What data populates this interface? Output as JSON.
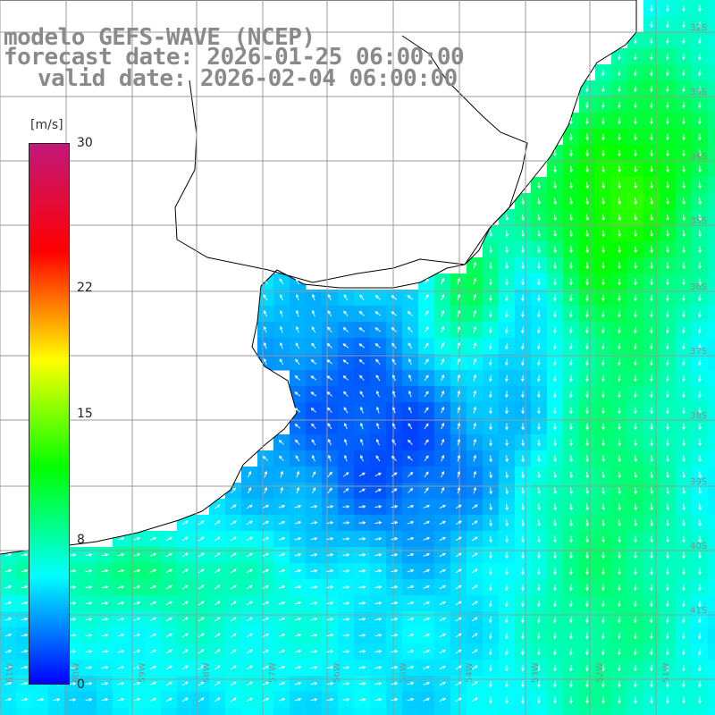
{
  "title": {
    "line1": "modelo GEFS-WAVE (NCEP)",
    "line2": "forecast date: 2026-01-25 06:00:00",
    "line3": "valid date: 2026-02-04 06:00:00"
  },
  "colorbar": {
    "unit": "[m/s]",
    "min": 0,
    "max": 30,
    "ticks": [
      {
        "value": 30,
        "label": "30"
      },
      {
        "value": 22,
        "label": "22"
      },
      {
        "value": 15,
        "label": "15"
      },
      {
        "value": 8,
        "label": "8"
      },
      {
        "value": 0,
        "label": "0"
      }
    ],
    "stops": [
      "#0000ff",
      "#00ffff",
      "#00ff00",
      "#ffff00",
      "#ff0000",
      "#c2187a"
    ]
  },
  "map": {
    "lon_range": [
      -61,
      -50
    ],
    "lat_range": [
      -41,
      -31
    ],
    "grid_step_deg": 1,
    "land_color": "#ffffff",
    "grid_color": "#9a9a9a",
    "arrow_color": "#ffffff",
    "lat_labels": [
      "32S",
      "33S",
      "34S",
      "35S",
      "36S",
      "37S",
      "38S",
      "39S",
      "40S",
      "41S"
    ],
    "lon_labels": [
      "61W",
      "60W",
      "59W",
      "58W",
      "57W",
      "56W",
      "55W",
      "54W",
      "53W",
      "52W",
      "51W"
    ]
  }
}
